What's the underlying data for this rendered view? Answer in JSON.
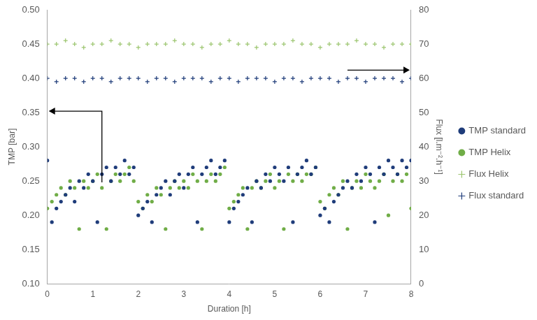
{
  "chart_data": {
    "type": "scatter",
    "x_label": "Duration [h]",
    "y_label": "TMP [bar]",
    "y2_label": "Flux [l.m⁻².h⁻¹]",
    "xlim": [
      0,
      8
    ],
    "xticks": [
      0,
      1,
      2,
      3,
      4,
      5,
      6,
      7,
      8
    ],
    "ylim": [
      0.1,
      0.5
    ],
    "yticks": [
      {
        "value": 0.1,
        "label": "0.10"
      },
      {
        "value": 0.15,
        "label": "0.15"
      },
      {
        "value": 0.2,
        "label": "0.20"
      },
      {
        "value": 0.25,
        "label": "0.25"
      },
      {
        "value": 0.3,
        "label": "0.30"
      },
      {
        "value": 0.35,
        "label": "0.35"
      },
      {
        "value": 0.4,
        "label": "0.40"
      },
      {
        "value": 0.45,
        "label": "0.45"
      },
      {
        "value": 0.5,
        "label": "0.50"
      }
    ],
    "y2lim": [
      0,
      80
    ],
    "y2ticks": [
      0,
      10,
      20,
      30,
      40,
      50,
      60,
      70,
      80
    ],
    "grid": false,
    "legend": "right",
    "series": [
      {
        "name": "TMP standard",
        "color": "#1f3c7a",
        "marker": "circle",
        "axis": "y",
        "x": [
          0,
          0.1,
          0.2,
          0.3,
          0.4,
          0.5,
          0.6,
          0.7,
          0.8,
          0.9,
          1,
          1.1,
          1.2,
          1.3,
          1.4,
          1.5,
          1.6,
          1.7,
          1.8,
          1.9,
          2,
          2.1,
          2.2,
          2.3,
          2.4,
          2.5,
          2.6,
          2.7,
          2.8,
          2.9,
          3,
          3.1,
          3.2,
          3.3,
          3.4,
          3.5,
          3.6,
          3.7,
          3.8,
          3.9,
          4,
          4.1,
          4.2,
          4.3,
          4.4,
          4.5,
          4.6,
          4.7,
          4.8,
          4.9,
          5,
          5.1,
          5.2,
          5.3,
          5.4,
          5.5,
          5.6,
          5.7,
          5.8,
          5.9,
          6,
          6.1,
          6.2,
          6.3,
          6.4,
          6.5,
          6.6,
          6.7,
          6.8,
          6.9,
          7,
          7.1,
          7.2,
          7.3,
          7.4,
          7.5,
          7.6,
          7.7,
          7.8,
          7.9,
          8
        ],
        "values": [
          0.28,
          0.19,
          0.21,
          0.22,
          0.23,
          0.24,
          0.22,
          0.25,
          0.24,
          0.26,
          0.25,
          0.19,
          0.26,
          0.27,
          0.25,
          0.27,
          0.26,
          0.28,
          0.26,
          0.27,
          0.2,
          0.21,
          0.22,
          0.19,
          0.23,
          0.24,
          0.25,
          0.23,
          0.25,
          0.26,
          0.24,
          0.26,
          0.27,
          0.19,
          0.26,
          0.27,
          0.28,
          0.26,
          0.27,
          0.28,
          0.19,
          0.21,
          0.22,
          0.23,
          0.24,
          0.19,
          0.25,
          0.24,
          0.26,
          0.25,
          0.27,
          0.26,
          0.25,
          0.27,
          0.19,
          0.26,
          0.27,
          0.28,
          0.26,
          0.27,
          0.2,
          0.21,
          0.19,
          0.22,
          0.23,
          0.24,
          0.25,
          0.24,
          0.26,
          0.25,
          0.27,
          0.26,
          0.19,
          0.27,
          0.26,
          0.28,
          0.27,
          0.26,
          0.28,
          0.27,
          0.28
        ]
      },
      {
        "name": "TMP Helix",
        "color": "#70ad47",
        "marker": "circle",
        "axis": "y",
        "x": [
          0,
          0.1,
          0.2,
          0.3,
          0.4,
          0.5,
          0.6,
          0.7,
          0.8,
          0.9,
          1,
          1.1,
          1.2,
          1.3,
          1.4,
          1.5,
          1.6,
          1.7,
          1.8,
          1.9,
          2,
          2.1,
          2.2,
          2.3,
          2.4,
          2.5,
          2.6,
          2.7,
          2.8,
          2.9,
          3,
          3.1,
          3.2,
          3.3,
          3.4,
          3.5,
          3.6,
          3.7,
          3.8,
          3.9,
          4,
          4.1,
          4.2,
          4.3,
          4.4,
          4.5,
          4.6,
          4.7,
          4.8,
          4.9,
          5,
          5.1,
          5.2,
          5.3,
          5.4,
          5.5,
          5.6,
          5.7,
          5.8,
          5.9,
          6,
          6.1,
          6.2,
          6.3,
          6.4,
          6.5,
          6.6,
          6.7,
          6.8,
          6.9,
          7,
          7.1,
          7.2,
          7.3,
          7.4,
          7.5,
          7.6,
          7.7,
          7.8,
          7.9,
          8
        ],
        "values": [
          0.21,
          0.22,
          0.23,
          0.24,
          0.23,
          0.25,
          0.24,
          0.18,
          0.25,
          0.24,
          0.25,
          0.26,
          0.24,
          0.18,
          0.25,
          0.26,
          0.25,
          0.26,
          0.27,
          0.25,
          0.22,
          0.21,
          0.23,
          0.22,
          0.24,
          0.23,
          0.18,
          0.24,
          0.25,
          0.24,
          0.25,
          0.24,
          0.26,
          0.25,
          0.18,
          0.25,
          0.26,
          0.25,
          0.26,
          0.27,
          0.21,
          0.22,
          0.23,
          0.24,
          0.18,
          0.24,
          0.25,
          0.24,
          0.25,
          0.26,
          0.24,
          0.25,
          0.18,
          0.26,
          0.25,
          0.26,
          0.25,
          0.26,
          0.26,
          0.27,
          0.22,
          0.21,
          0.23,
          0.24,
          0.23,
          0.25,
          0.18,
          0.24,
          0.25,
          0.24,
          0.26,
          0.25,
          0.24,
          0.25,
          0.26,
          0.2,
          0.25,
          0.26,
          0.25,
          0.26,
          0.21
        ]
      },
      {
        "name": "Flux Helix",
        "color": "#9bc56e",
        "marker": "cross",
        "axis": "y2",
        "x": [
          0,
          0.2,
          0.4,
          0.6,
          0.8,
          1,
          1.2,
          1.4,
          1.6,
          1.8,
          2,
          2.2,
          2.4,
          2.6,
          2.8,
          3,
          3.2,
          3.4,
          3.6,
          3.8,
          4,
          4.2,
          4.4,
          4.6,
          4.8,
          5,
          5.2,
          5.4,
          5.6,
          5.8,
          6,
          6.2,
          6.4,
          6.6,
          6.8,
          7,
          7.2,
          7.4,
          7.6,
          7.8,
          8
        ],
        "values": [
          70,
          70,
          71,
          70,
          69,
          70,
          70,
          71,
          70,
          70,
          69,
          70,
          70,
          70,
          71,
          70,
          70,
          69,
          70,
          70,
          71,
          70,
          70,
          69,
          70,
          70,
          70,
          71,
          70,
          70,
          69,
          70,
          70,
          70,
          71,
          70,
          70,
          69,
          70,
          70,
          70
        ]
      },
      {
        "name": "Flux standard",
        "color": "#1f3c7a",
        "marker": "cross",
        "axis": "y2",
        "x": [
          0,
          0.2,
          0.4,
          0.6,
          0.8,
          1,
          1.2,
          1.4,
          1.6,
          1.8,
          2,
          2.2,
          2.4,
          2.6,
          2.8,
          3,
          3.2,
          3.4,
          3.6,
          3.8,
          4,
          4.2,
          4.4,
          4.6,
          4.8,
          5,
          5.2,
          5.4,
          5.6,
          5.8,
          6,
          6.2,
          6.4,
          6.6,
          6.8,
          7,
          7.2,
          7.4,
          7.6,
          7.8,
          8
        ],
        "values": [
          60,
          59,
          60,
          60,
          59,
          60,
          60,
          59,
          60,
          60,
          60,
          59,
          60,
          60,
          59,
          60,
          60,
          60,
          59,
          60,
          60,
          59,
          60,
          60,
          60,
          59,
          60,
          60,
          59,
          60,
          60,
          60,
          59,
          60,
          60,
          59,
          60,
          60,
          60,
          59,
          60
        ]
      }
    ]
  }
}
